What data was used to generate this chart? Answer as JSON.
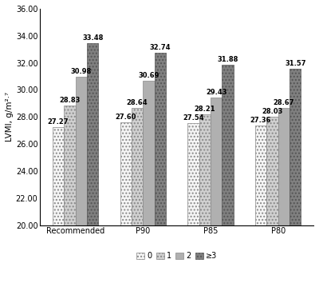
{
  "categories": [
    "Recommended",
    "P90",
    "P85",
    "P80"
  ],
  "groups": [
    "0",
    "1",
    "2",
    "≥3"
  ],
  "values": [
    [
      27.27,
      28.83,
      30.98,
      33.48
    ],
    [
      27.6,
      28.64,
      30.69,
      32.74
    ],
    [
      27.54,
      28.21,
      29.43,
      31.88
    ],
    [
      27.36,
      28.03,
      28.67,
      31.57
    ]
  ],
  "ylabel": "LVMI, g/m²·⁷",
  "ylim": [
    20.0,
    36.0
  ],
  "yticks": [
    20.0,
    22.0,
    24.0,
    26.0,
    28.0,
    30.0,
    32.0,
    34.0,
    36.0
  ],
  "bar_width": 0.17,
  "label_fontsize": 6.0,
  "axis_fontsize": 7.5,
  "tick_fontsize": 7.0,
  "legend_fontsize": 7.0
}
